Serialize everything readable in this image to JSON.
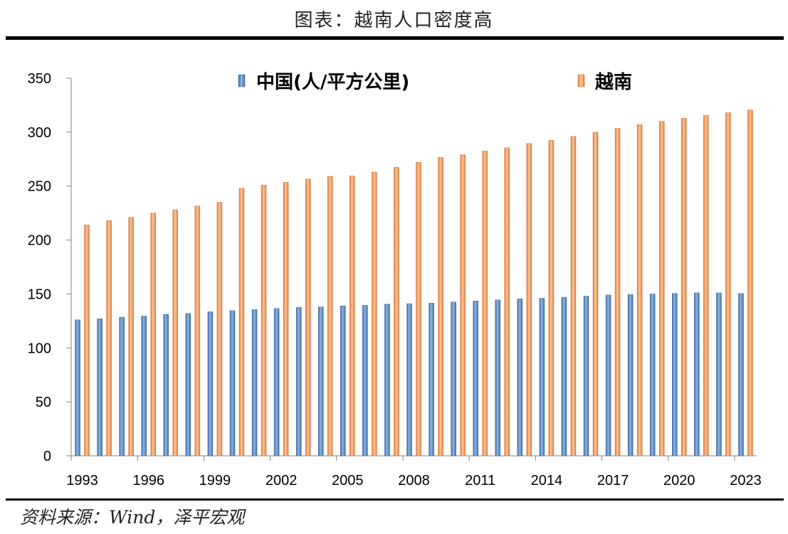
{
  "header": {
    "title": "图表：越南人口密度高"
  },
  "footer": {
    "source": "资料来源：Wind，泽平宏观"
  },
  "colors": {
    "china": "#5b8cc7",
    "vietnam": "#f5a36a"
  },
  "chart_data": {
    "type": "bar",
    "title": "",
    "xlabel": "",
    "ylabel": "",
    "ylim": [
      0,
      350
    ],
    "yticks": [
      0,
      50,
      100,
      150,
      200,
      250,
      300,
      350
    ],
    "xtick_labels": [
      "1993",
      "1996",
      "1999",
      "2002",
      "2005",
      "2008",
      "2011",
      "2014",
      "2017",
      "2020",
      "2023"
    ],
    "legend_position": "top",
    "grid": false,
    "categories": [
      "1993",
      "1994",
      "1995",
      "1996",
      "1997",
      "1998",
      "1999",
      "2000",
      "2001",
      "2002",
      "2003",
      "2004",
      "2005",
      "2006",
      "2007",
      "2008",
      "2009",
      "2010",
      "2011",
      "2012",
      "2013",
      "2014",
      "2015",
      "2016",
      "2017",
      "2018",
      "2019",
      "2020",
      "2021",
      "2022",
      "2023"
    ],
    "series": [
      {
        "name": "中国(人/平方公里)",
        "values": [
          126,
          127,
          128.5,
          129.5,
          131,
          132,
          133.5,
          134.5,
          135.5,
          136.5,
          137.5,
          138,
          139,
          139.5,
          140.5,
          141,
          141.5,
          142.5,
          143.5,
          144.5,
          145.5,
          146,
          147,
          148,
          149,
          149.5,
          150,
          150.5,
          151,
          151,
          150.5
        ]
      },
      {
        "name": "越南",
        "values": [
          214,
          218,
          221,
          225,
          228,
          231.5,
          235,
          248,
          251,
          253.5,
          256.5,
          259,
          259.5,
          263,
          267.5,
          272,
          276.5,
          279,
          282.5,
          285.5,
          289.5,
          292.5,
          296,
          300,
          303.5,
          307,
          310,
          313,
          315.5,
          318,
          320.5
        ]
      }
    ]
  }
}
